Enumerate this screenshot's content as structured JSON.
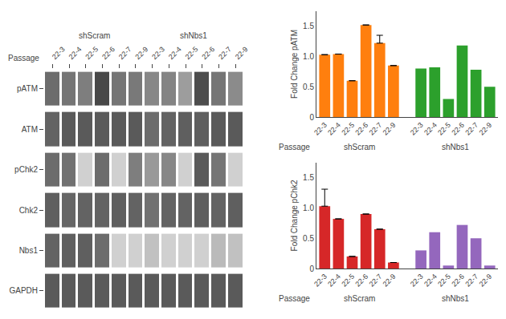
{
  "chart_data": [
    {
      "type": "heatmap",
      "xlabel": "Passage",
      "categories": [
        "22-3",
        "22-4",
        "22-5",
        "22-6",
        "22-7",
        "22-9",
        "22-3",
        "22-4",
        "22-5",
        "22-6",
        "22-7",
        "22-9"
      ],
      "rows": [
        "pATM",
        "ATM",
        "pChk2",
        "Chk2",
        "Nbs1",
        "GAPDH"
      ],
      "groups": [
        "shScram",
        "shNbs1"
      ],
      "cells": [
        [
          0.55,
          0.5,
          0.45,
          0.75,
          0.5,
          0.48,
          0.4,
          0.42,
          0.28,
          0.72,
          0.5,
          0.38
        ],
        [
          0.6,
          0.65,
          0.65,
          0.65,
          0.65,
          0.65,
          0.55,
          0.6,
          0.62,
          0.62,
          0.65,
          0.65
        ],
        [
          0.55,
          0.52,
          0.0,
          0.55,
          0.0,
          0.45,
          0.3,
          0.4,
          0.0,
          0.65,
          0.5,
          0.0
        ],
        [
          0.62,
          0.58,
          0.6,
          0.6,
          0.62,
          0.6,
          0.52,
          0.6,
          0.6,
          0.62,
          0.6,
          0.62
        ],
        [
          0.6,
          0.62,
          0.62,
          0.55,
          0.0,
          0.0,
          0.08,
          0.0,
          0.0,
          0.0,
          0.12,
          0.08
        ],
        [
          0.65,
          0.65,
          0.65,
          0.65,
          0.65,
          0.65,
          0.65,
          0.65,
          0.65,
          0.65,
          0.65,
          0.65
        ]
      ],
      "zlim": [
        0,
        1
      ]
    },
    {
      "type": "bar",
      "ylabel": "Fold Change pATM",
      "xlabel": "Passage",
      "categories": [
        "22-3",
        "22-4",
        "22-5",
        "22-6",
        "22-7",
        "22-9"
      ],
      "groups": [
        {
          "label": "shScram",
          "values": [
            1.03,
            1.04,
            0.6,
            1.52,
            1.22,
            0.85
          ],
          "errors": [
            null,
            null,
            null,
            null,
            0.13,
            null
          ]
        },
        {
          "label": "shNbs1",
          "values": [
            0.8,
            0.82,
            0.3,
            1.18,
            0.78,
            0.5
          ]
        }
      ],
      "ylim": [
        0,
        1.75
      ],
      "yticks": [
        0,
        0.5,
        {
          "value": 1.0,
          "label": "1.0"
        },
        1.5
      ],
      "grid": false
    },
    {
      "type": "bar",
      "ylabel": "Fold Change pChk2",
      "xlabel": "Passage",
      "categories": [
        "22-3",
        "22-4",
        "22-5",
        "22-6",
        "22-7",
        "22-9"
      ],
      "groups": [
        {
          "label": "shScram",
          "values": [
            1.03,
            0.82,
            0.2,
            0.9,
            0.65,
            0.1
          ],
          "errors": [
            0.28,
            null,
            null,
            null,
            null,
            null
          ]
        },
        {
          "label": "shNbs1",
          "values": [
            0.3,
            0.6,
            0.05,
            0.72,
            0.5,
            0.05
          ]
        }
      ],
      "ylim": [
        0,
        1.75
      ],
      "yticks": [
        0,
        0.5,
        {
          "value": 1.0,
          "label": "1.0"
        },
        1.5
      ],
      "grid": false
    }
  ]
}
